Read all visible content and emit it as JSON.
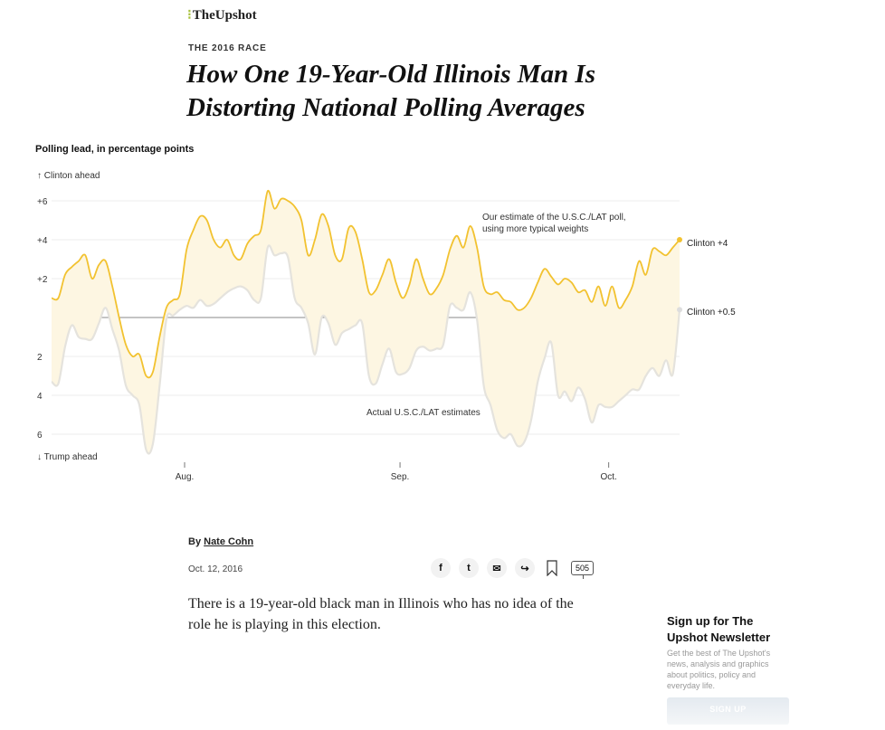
{
  "brand": "TheUpshot",
  "kicker": "THE 2016 RACE",
  "headline": "How One 19-Year-Old Illinois Man Is Distorting National Polling Averages",
  "chart_data": {
    "type": "line",
    "title": "Polling lead, in percentage points",
    "y_top_label": "↑ Clinton ahead",
    "y_bottom_label": "↓ Trump ahead",
    "y_ticks": [
      {
        "v": 6,
        "label": "+6"
      },
      {
        "v": 4,
        "label": "+4"
      },
      {
        "v": 2,
        "label": "+2"
      },
      {
        "v": -2,
        "label": "2"
      },
      {
        "v": -4,
        "label": "4"
      },
      {
        "v": -6,
        "label": "6"
      }
    ],
    "ylim": [
      -7,
      7
    ],
    "x_ticks": [
      {
        "x": 6.7,
        "label": "Aug."
      },
      {
        "x": 38.6,
        "label": "Sep."
      },
      {
        "x": 69.5,
        "label": "Oct."
      }
    ],
    "xlim": [
      -13,
      80
    ],
    "grid": true,
    "series": [
      {
        "name": "Our estimate of the U.S.C./LAT poll, using more typical weights",
        "label_line1": "Our estimate of the U.S.C./LAT poll,",
        "label_line2": "using more typical weights",
        "end_label": "Clinton +4",
        "color": "#f2c230",
        "x": [
          -13,
          -12,
          -11,
          -10,
          -9,
          -8,
          -7,
          -6,
          -5,
          -4,
          -3,
          -2,
          -1,
          0,
          1,
          2,
          3,
          4,
          5,
          6,
          7,
          8,
          9,
          10,
          11,
          12,
          13,
          14,
          15,
          16,
          17,
          18,
          19,
          20,
          21,
          22,
          23,
          24,
          25,
          26,
          27,
          28,
          29,
          30,
          31,
          32,
          33,
          34,
          35,
          36,
          37,
          38,
          39,
          40,
          41,
          42,
          43,
          44,
          45,
          46,
          47,
          48,
          49,
          50,
          51,
          52,
          53,
          54,
          55,
          56,
          57,
          58,
          59,
          60,
          61,
          62,
          63,
          64,
          65,
          66,
          67,
          68,
          69,
          70,
          71,
          72,
          73,
          74,
          75,
          76,
          77,
          78,
          79,
          80
        ],
        "y": [
          1.0,
          1.0,
          2.2,
          2.6,
          2.9,
          3.2,
          2.0,
          2.7,
          2.9,
          1.6,
          0.0,
          -1.4,
          -2.0,
          -1.9,
          -3.0,
          -2.8,
          -1.0,
          0.5,
          0.9,
          1.2,
          3.5,
          4.5,
          5.2,
          5.0,
          4.0,
          3.6,
          4.0,
          3.2,
          3.0,
          3.8,
          4.2,
          4.5,
          6.5,
          5.6,
          6.1,
          6.0,
          5.7,
          5.0,
          3.2,
          4.0,
          5.3,
          4.7,
          3.2,
          3.0,
          4.6,
          4.4,
          3.0,
          1.3,
          1.4,
          2.2,
          3.0,
          1.8,
          1.0,
          1.7,
          3.0,
          2.0,
          1.2,
          1.5,
          2.2,
          3.5,
          4.2,
          3.6,
          4.7,
          3.6,
          1.6,
          1.2,
          1.3,
          0.9,
          0.8,
          0.4,
          0.5,
          1.0,
          1.8,
          2.5,
          2.1,
          1.7,
          2.0,
          1.8,
          1.3,
          1.4,
          0.8,
          1.6,
          0.6,
          1.6,
          0.5,
          0.9,
          1.6,
          2.9,
          2.2,
          3.5,
          3.4,
          3.2,
          3.6,
          4.0
        ]
      },
      {
        "name": "Actual U.S.C./LAT estimates",
        "label_line1": "Actual U.S.C./LAT estimates",
        "end_label": "Clinton +0.5",
        "color": "#e5e3dd",
        "x": [
          -13,
          -12,
          -11,
          -10,
          -9,
          -8,
          -7,
          -6,
          -5,
          -4,
          -3,
          -2,
          -1,
          0,
          1,
          2,
          3,
          4,
          5,
          6,
          7,
          8,
          9,
          10,
          11,
          12,
          13,
          14,
          15,
          16,
          17,
          18,
          19,
          20,
          21,
          22,
          23,
          24,
          25,
          26,
          27,
          28,
          29,
          30,
          31,
          32,
          33,
          34,
          35,
          36,
          37,
          38,
          39,
          40,
          41,
          42,
          43,
          44,
          45,
          46,
          47,
          48,
          49,
          50,
          51,
          52,
          53,
          54,
          55,
          56,
          57,
          58,
          59,
          60,
          61,
          62,
          63,
          64,
          65,
          66,
          67,
          68,
          69,
          70,
          71,
          72,
          73,
          74,
          75,
          76,
          77,
          78,
          79,
          80
        ],
        "y": [
          -3.3,
          -3.4,
          -1.5,
          -0.4,
          -1.0,
          -1.1,
          -1.1,
          -0.3,
          0.5,
          -0.6,
          -1.7,
          -3.5,
          -4.0,
          -4.5,
          -6.8,
          -6.5,
          -3.5,
          -0.1,
          0.1,
          0.4,
          0.6,
          0.5,
          0.9,
          0.6,
          0.7,
          1.0,
          1.3,
          1.5,
          1.6,
          1.4,
          0.9,
          1.0,
          3.6,
          3.2,
          3.3,
          3.1,
          1.0,
          0.5,
          -0.3,
          -1.9,
          0.0,
          -0.3,
          -1.4,
          -0.8,
          -0.6,
          -0.4,
          -0.3,
          -3.0,
          -3.4,
          -2.4,
          -1.6,
          -2.8,
          -2.9,
          -2.6,
          -1.7,
          -1.5,
          -1.7,
          -1.6,
          -1.4,
          0.6,
          0.5,
          0.4,
          1.3,
          -0.1,
          -3.5,
          -4.5,
          -5.8,
          -6.2,
          -6.0,
          -6.6,
          -6.4,
          -5.3,
          -3.3,
          -2.1,
          -1.3,
          -4.0,
          -3.8,
          -4.3,
          -3.6,
          -4.2,
          -5.4,
          -4.5,
          -4.6,
          -4.6,
          -4.3,
          -4.0,
          -3.7,
          -3.7,
          -3.0,
          -2.6,
          -3.0,
          -2.2,
          -2.9,
          0.4
        ]
      }
    ]
  },
  "byline_prefix": "By ",
  "author": "Nate Cohn",
  "date": "Oct. 12, 2016",
  "share": {
    "facebook": "f",
    "twitter": "t",
    "email": "✉",
    "share": "↪",
    "comments": "505"
  },
  "body_text": "There is a 19-year-old black man in Illinois who has no idea of the role he is playing in this election.",
  "newsletter": {
    "title": "Sign up for The Upshot Newsletter",
    "description": "Get the best of The Upshot's news, analysis and graphics about politics, policy and everyday life.",
    "button": "SIGN UP"
  },
  "icons": {
    "bookmark": "bookmark-icon",
    "email": "envelope-icon",
    "share": "share-arrow-icon"
  }
}
